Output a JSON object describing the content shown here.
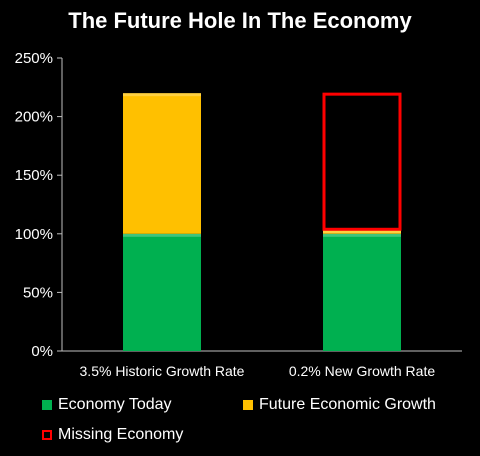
{
  "chart_data": {
    "type": "bar",
    "stacked": true,
    "title": "The Future Hole In The Economy",
    "categories": [
      "3.5% Historic Growth Rate",
      "0.2% New Growth Rate"
    ],
    "series": [
      {
        "name": "Economy Today",
        "values": [
          100,
          100
        ],
        "color": "#00b050",
        "style": "fill"
      },
      {
        "name": "Future Economic Growth",
        "values": [
          120,
          3
        ],
        "color": "#ffc000",
        "style": "fill"
      },
      {
        "name": "Missing Economy",
        "values": [
          0,
          117
        ],
        "color": "#ff0000",
        "style": "outline"
      }
    ],
    "ylim": [
      0,
      250
    ],
    "yticks": [
      0,
      50,
      100,
      150,
      200,
      250
    ],
    "ytick_labels": [
      "0%",
      "50%",
      "100%",
      "150%",
      "200%",
      "250%"
    ],
    "xlabel": "",
    "ylabel": "",
    "grid": false,
    "legend_placement": "bottom"
  },
  "colors": {
    "background": "#000000",
    "axis": "#bfbfbf",
    "text": "#ffffff"
  }
}
